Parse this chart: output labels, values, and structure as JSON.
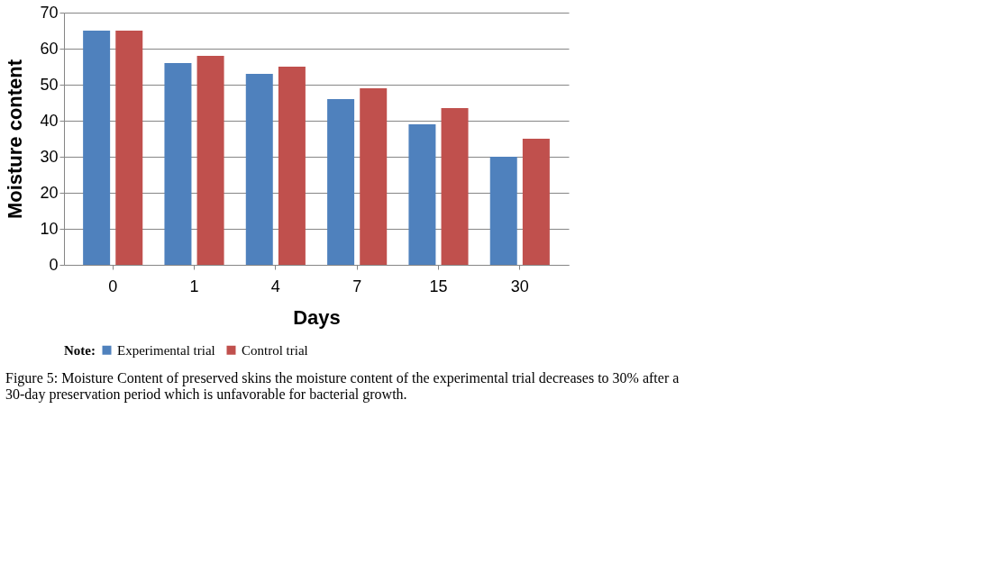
{
  "chart_data": {
    "type": "bar",
    "categories": [
      "0",
      "1",
      "4",
      "7",
      "15",
      "30"
    ],
    "series": [
      {
        "name": "Experimental trial",
        "color": "#4f81bd",
        "values": [
          65,
          56,
          53,
          46,
          39,
          30
        ]
      },
      {
        "name": "Control trial",
        "color": "#c0504d",
        "values": [
          65,
          58,
          55,
          49,
          43.5,
          35
        ]
      }
    ],
    "xlabel": "Days",
    "ylabel": "Moisture content",
    "ylim": [
      0,
      70
    ],
    "yticks": [
      0,
      10,
      20,
      30,
      40,
      50,
      60,
      70
    ],
    "grid": "y",
    "legend": "bottom",
    "legend_title": "Note:",
    "annotations": [
      "Figure 5: Moisture Content of preserved skins the moisture content of the experimental trial decreases to 30% after a 30-day preservation period which is unfavorable for bacterial growth."
    ]
  }
}
